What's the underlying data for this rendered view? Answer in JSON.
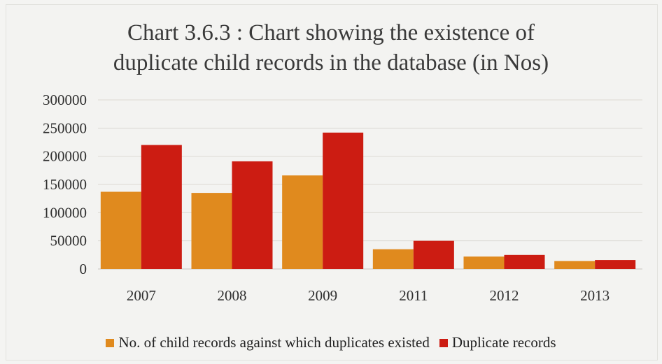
{
  "chart_data": {
    "type": "bar",
    "title_lines": [
      "Chart 3.6.3 : Chart showing the existence of",
      "duplicate child records in the database (in Nos)"
    ],
    "xlabel": "",
    "ylabel": "",
    "categories": [
      "2007",
      "2008",
      "2009",
      "2011",
      "2012",
      "2013"
    ],
    "ylim": [
      0,
      300000
    ],
    "yticks": [
      0,
      50000,
      100000,
      150000,
      200000,
      250000,
      300000
    ],
    "ytick_labels": [
      "0",
      "50000",
      "100000",
      "150000",
      "200000",
      "250000",
      "300000"
    ],
    "grid": true,
    "legend_position": "bottom",
    "series": [
      {
        "name": "No. of child records against which duplicates existed",
        "color": "#e08a1e",
        "values": [
          137000,
          135000,
          166000,
          35000,
          22000,
          14000
        ]
      },
      {
        "name": "Duplicate records",
        "color": "#cc1c12",
        "values": [
          220000,
          191000,
          242000,
          50000,
          25000,
          16000
        ]
      }
    ]
  }
}
